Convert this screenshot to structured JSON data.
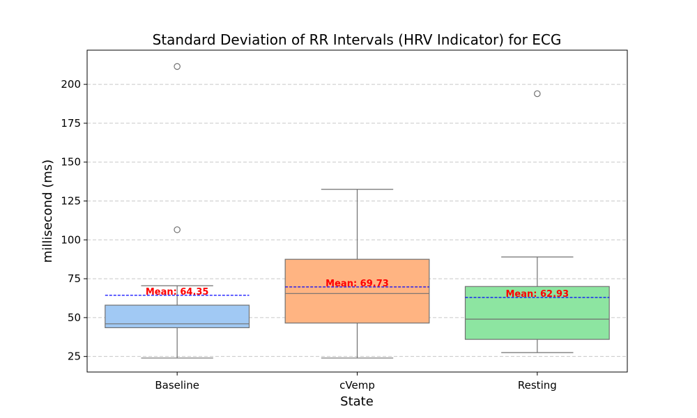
{
  "chart_data": {
    "type": "box",
    "title": "Standard Deviation of RR Intervals (HRV Indicator) for ECG",
    "xlabel": "State",
    "ylabel": "millisecond (ms)",
    "ylim": [
      15,
      222
    ],
    "yticks": [
      25,
      50,
      75,
      100,
      125,
      150,
      175,
      200
    ],
    "grid": "horizontal dashed",
    "colors": {
      "edge": "#707070",
      "mean_line": "#0000ff",
      "mean_text": "#ff0000",
      "grid": "#c8c8c8"
    },
    "categories": [
      "Baseline",
      "cVemp",
      "Resting"
    ],
    "series": [
      {
        "category": "Baseline",
        "whisker_low": 24,
        "q1": 43.5,
        "median": 46,
        "q3": 58,
        "whisker_high": 70.5,
        "outliers": [
          106.5,
          211.5
        ],
        "mean": 64.35,
        "mean_label": "Mean: 64.35",
        "color": "#a1c9f4"
      },
      {
        "category": "cVemp",
        "whisker_low": 24,
        "q1": 46.5,
        "median": 65.5,
        "q3": 87.5,
        "whisker_high": 132.5,
        "outliers": [],
        "mean": 69.73,
        "mean_label": "Mean: 69.73",
        "color": "#ffb482"
      },
      {
        "category": "Resting",
        "whisker_low": 27.5,
        "q1": 36,
        "median": 49,
        "q3": 70,
        "whisker_high": 89,
        "outliers": [
          194
        ],
        "mean": 62.93,
        "mean_label": "Mean: 62.93",
        "color": "#8de5a1"
      }
    ]
  }
}
